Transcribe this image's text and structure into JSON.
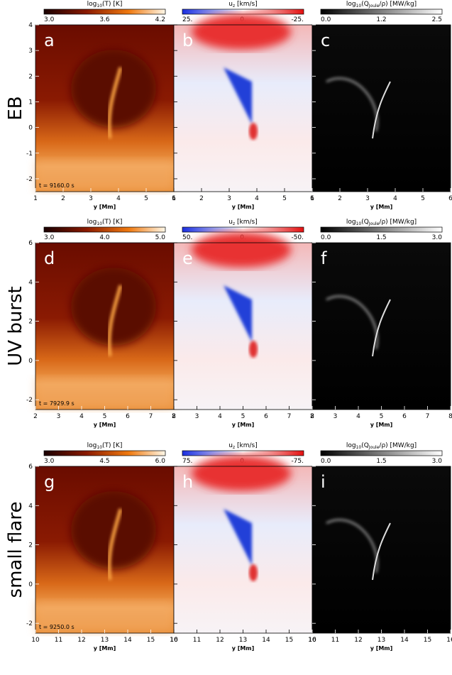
{
  "rows": [
    {
      "label": "EB",
      "time": "t =  9160.0 s",
      "yaxis": {
        "range": [
          -2.5,
          4
        ],
        "ticks": [
          -2,
          -1,
          0,
          1,
          2,
          3,
          4
        ]
      },
      "panels": [
        {
          "letter": "a",
          "colormap": "heat",
          "colorbar": {
            "label": [
              {
                "text": "log"
              },
              {
                "text": "10",
                "sub": true
              },
              {
                "text": "(T)  [K]"
              }
            ],
            "ticks": [
              "3.0",
              "3.6",
              "4.2"
            ]
          },
          "xaxis": {
            "range": [
              1,
              6
            ],
            "ticks": [
              1,
              2,
              3,
              4,
              5,
              6
            ],
            "label": "y [Mm]"
          }
        },
        {
          "letter": "b",
          "colormap": "diverging",
          "colorbar": {
            "label": [
              {
                "text": "u"
              },
              {
                "text": "z",
                "sub": true
              },
              {
                "text": " [km/s]"
              }
            ],
            "ticks": [
              "25.",
              "0.",
              "-25."
            ]
          },
          "xaxis": {
            "range": [
              1,
              6
            ],
            "ticks": [
              1,
              2,
              3,
              4,
              5,
              6
            ],
            "label": "y [Mm]"
          }
        },
        {
          "letter": "c",
          "colormap": "gray",
          "colorbar": {
            "label": [
              {
                "text": "log"
              },
              {
                "text": "10",
                "sub": true
              },
              {
                "text": "(Q"
              },
              {
                "text": "Joule",
                "sub": true
              },
              {
                "text": "/ρ)  [MW/kg]"
              }
            ],
            "ticks": [
              "0.0",
              "1.2",
              "2.5"
            ]
          },
          "xaxis": {
            "range": [
              1,
              6
            ],
            "ticks": [
              1,
              2,
              3,
              4,
              5,
              6
            ],
            "label": "y [Mm]"
          }
        }
      ]
    },
    {
      "label": "UV burst",
      "time": "t =  7929.9 s",
      "yaxis": {
        "range": [
          -2.5,
          6
        ],
        "ticks": [
          -2,
          0,
          2,
          4,
          6
        ]
      },
      "panels": [
        {
          "letter": "d",
          "colormap": "heat",
          "colorbar": {
            "label": [
              {
                "text": "log"
              },
              {
                "text": "10",
                "sub": true
              },
              {
                "text": "(T)  [K]"
              }
            ],
            "ticks": [
              "3.0",
              "4.0",
              "5.0"
            ]
          },
          "xaxis": {
            "range": [
              2,
              8
            ],
            "ticks": [
              2,
              3,
              4,
              5,
              6,
              7,
              8
            ],
            "label": "y [Mm]"
          }
        },
        {
          "letter": "e",
          "colormap": "diverging",
          "colorbar": {
            "label": [
              {
                "text": "u"
              },
              {
                "text": "z",
                "sub": true
              },
              {
                "text": " [km/s]"
              }
            ],
            "ticks": [
              "50.",
              "0.",
              "-50."
            ]
          },
          "xaxis": {
            "range": [
              2,
              8
            ],
            "ticks": [
              2,
              3,
              4,
              5,
              6,
              7,
              8
            ],
            "label": "y [Mm]"
          }
        },
        {
          "letter": "f",
          "colormap": "gray",
          "colorbar": {
            "label": [
              {
                "text": "log"
              },
              {
                "text": "10",
                "sub": true
              },
              {
                "text": "(Q"
              },
              {
                "text": "Joule",
                "sub": true
              },
              {
                "text": "/ρ)  [MW/kg]"
              }
            ],
            "ticks": [
              "0.0",
              "1.5",
              "3.0"
            ]
          },
          "xaxis": {
            "range": [
              2,
              8
            ],
            "ticks": [
              2,
              3,
              4,
              5,
              6,
              7,
              8
            ],
            "label": "y [Mm]"
          }
        }
      ]
    },
    {
      "label": "small flare",
      "time": "t =  9250.0 s",
      "yaxis": {
        "range": [
          -2.5,
          6
        ],
        "ticks": [
          -2,
          0,
          2,
          4,
          6
        ]
      },
      "panels": [
        {
          "letter": "g",
          "colormap": "heat",
          "colorbar": {
            "label": [
              {
                "text": "log"
              },
              {
                "text": "10",
                "sub": true
              },
              {
                "text": "(T)  [K]"
              }
            ],
            "ticks": [
              "3.0",
              "4.5",
              "6.0"
            ]
          },
          "xaxis": {
            "range": [
              10,
              16
            ],
            "ticks": [
              10,
              11,
              12,
              13,
              14,
              15,
              16
            ],
            "label": "y [Mm]"
          }
        },
        {
          "letter": "h",
          "colormap": "diverging",
          "colorbar": {
            "label": [
              {
                "text": "u"
              },
              {
                "text": "z",
                "sub": true
              },
              {
                "text": " [km/s]"
              }
            ],
            "ticks": [
              "75.",
              "0.",
              "-75."
            ]
          },
          "xaxis": {
            "range": [
              10,
              16
            ],
            "ticks": [
              10,
              11,
              12,
              13,
              14,
              15,
              16
            ],
            "label": "y [Mm]"
          }
        },
        {
          "letter": "i",
          "colormap": "gray",
          "colorbar": {
            "label": [
              {
                "text": "log"
              },
              {
                "text": "10",
                "sub": true
              },
              {
                "text": "(Q"
              },
              {
                "text": "Joule",
                "sub": true
              },
              {
                "text": "/ρ)  [MW/kg]"
              }
            ],
            "ticks": [
              "0.0",
              "1.5",
              "3.0"
            ]
          },
          "xaxis": {
            "range": [
              10,
              16
            ],
            "ticks": [
              10,
              11,
              12,
              13,
              14,
              15,
              16
            ],
            "label": "y [Mm]"
          }
        }
      ]
    }
  ]
}
